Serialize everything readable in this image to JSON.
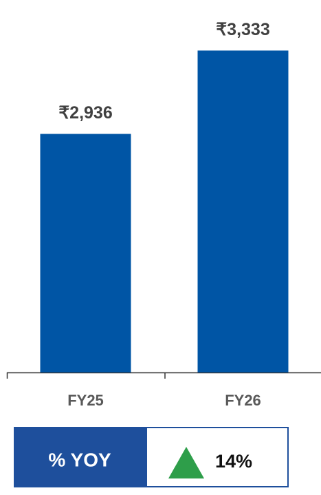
{
  "chart_data": {
    "type": "bar",
    "categories": [
      "FY25",
      "FY26"
    ],
    "values": [
      2936,
      3333
    ],
    "value_labels": [
      "₹2,936",
      "₹3,333"
    ],
    "color": "#0055a5",
    "ylim": [
      1800,
      3400
    ]
  },
  "yoy": {
    "label": "% YOY",
    "value": "14%"
  }
}
